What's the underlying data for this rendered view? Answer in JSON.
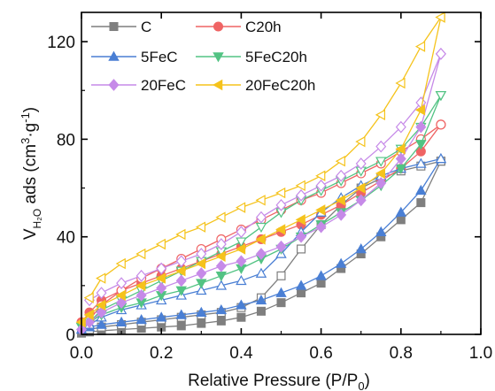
{
  "chart_data": {
    "type": "line",
    "xlabel": "Relative Pressure (P/P0)",
    "xlabel_parts": {
      "main": "Relative Pressure (P/P",
      "sub": "0",
      "end": ")"
    },
    "ylabel": "VH2O ads (cm3·g-1)",
    "ylabel_parts": {
      "v": "V",
      "sub": "H₂O",
      "mid": " ads (cm",
      "sup1": "3",
      "dot": "·g",
      "sup2": "-1",
      "end": ")"
    },
    "xlim": [
      0.0,
      1.0
    ],
    "ylim": [
      0,
      132
    ],
    "xticks": [
      0.0,
      0.2,
      0.4,
      0.6,
      0.8,
      1.0
    ],
    "xtick_labels": [
      "0.0",
      "0.2",
      "0.4",
      "0.6",
      "0.8",
      "1.0"
    ],
    "yticks": [
      0,
      40,
      80,
      120
    ],
    "ytick_labels": [
      "0",
      "40",
      "80",
      "120"
    ],
    "grid": false,
    "legend_placement": "top-left",
    "series": [
      {
        "name": "C",
        "color": "#7f7f7f",
        "marker": "square",
        "adsorption": {
          "x": [
            0.0,
            0.02,
            0.05,
            0.1,
            0.15,
            0.2,
            0.25,
            0.3,
            0.35,
            0.4,
            0.45,
            0.5,
            0.55,
            0.6,
            0.65,
            0.7,
            0.75,
            0.8,
            0.85,
            0.9
          ],
          "y": [
            0.5,
            1,
            1.5,
            2,
            2.5,
            3,
            3.5,
            4.5,
            5.5,
            7,
            9.5,
            13,
            17,
            21,
            27,
            33,
            40,
            47,
            54,
            71
          ]
        },
        "desorption": {
          "x": [
            0.9,
            0.85,
            0.8,
            0.75,
            0.7,
            0.65,
            0.6,
            0.55,
            0.5,
            0.45,
            0.4,
            0.35,
            0.3,
            0.25,
            0.2,
            0.15,
            0.1,
            0.05,
            0.02
          ],
          "y": [
            71,
            69,
            67,
            64,
            60,
            53,
            45,
            35,
            24,
            15,
            11,
            9,
            8,
            7,
            6,
            5,
            4,
            3,
            2
          ]
        }
      },
      {
        "name": "C20h",
        "color": "#ef6464",
        "marker": "circle",
        "adsorption": {
          "x": [
            0.0,
            0.02,
            0.05,
            0.1,
            0.15,
            0.2,
            0.25,
            0.3,
            0.35,
            0.4,
            0.45,
            0.5,
            0.55,
            0.6,
            0.65,
            0.7,
            0.75,
            0.8,
            0.85,
            0.9
          ],
          "y": [
            5,
            9,
            14,
            18,
            21,
            24,
            27,
            30,
            33,
            36,
            39,
            42,
            45,
            49,
            53,
            58,
            63,
            68,
            75,
            86
          ]
        },
        "desorption": {
          "x": [
            0.9,
            0.85,
            0.8,
            0.75,
            0.7,
            0.65,
            0.6,
            0.55,
            0.5,
            0.45,
            0.4,
            0.35,
            0.3,
            0.25,
            0.2,
            0.15,
            0.1,
            0.05,
            0.02
          ],
          "y": [
            86,
            80,
            75,
            70,
            66,
            62,
            58,
            55,
            51,
            47,
            43,
            39,
            35,
            31,
            27,
            23,
            18,
            12,
            6
          ]
        }
      },
      {
        "name": "5FeC",
        "color": "#4a7fd4",
        "marker": "triangle-up",
        "adsorption": {
          "x": [
            0.0,
            0.02,
            0.05,
            0.1,
            0.15,
            0.2,
            0.25,
            0.3,
            0.35,
            0.4,
            0.45,
            0.5,
            0.55,
            0.6,
            0.65,
            0.7,
            0.75,
            0.8,
            0.85,
            0.9
          ],
          "y": [
            2,
            3,
            4,
            5,
            6,
            7,
            8,
            9,
            10,
            12,
            14,
            17,
            20,
            24,
            29,
            35,
            42,
            50,
            59,
            72
          ]
        },
        "desorption": {
          "x": [
            0.9,
            0.85,
            0.8,
            0.75,
            0.7,
            0.65,
            0.6,
            0.55,
            0.5,
            0.45,
            0.4,
            0.35,
            0.3,
            0.25,
            0.2,
            0.15,
            0.1,
            0.05,
            0.02
          ],
          "y": [
            72,
            70,
            68,
            65,
            61,
            56,
            50,
            42,
            33,
            25,
            22,
            20,
            18,
            16,
            14,
            12,
            10,
            7,
            4
          ]
        }
      },
      {
        "name": "5FeC20h",
        "color": "#52c383",
        "marker": "triangle-down",
        "adsorption": {
          "x": [
            0.0,
            0.02,
            0.05,
            0.1,
            0.15,
            0.2,
            0.25,
            0.3,
            0.35,
            0.4,
            0.45,
            0.5,
            0.55,
            0.6,
            0.65,
            0.7,
            0.75,
            0.8,
            0.85,
            0.9
          ],
          "y": [
            3,
            5,
            8,
            11,
            13,
            16,
            18,
            21,
            24,
            27,
            31,
            35,
            40,
            45,
            50,
            55,
            61,
            68,
            78,
            98
          ]
        },
        "desorption": {
          "x": [
            0.9,
            0.85,
            0.8,
            0.75,
            0.7,
            0.65,
            0.6,
            0.55,
            0.5,
            0.45,
            0.4,
            0.35,
            0.3,
            0.25,
            0.2,
            0.15,
            0.1,
            0.05,
            0.02
          ],
          "y": [
            98,
            85,
            76,
            71,
            67,
            63,
            59,
            55,
            50,
            44,
            38,
            34,
            30,
            26,
            22,
            18,
            14,
            10,
            5
          ]
        }
      },
      {
        "name": "20FeC",
        "color": "#c68ae8",
        "marker": "diamond",
        "adsorption": {
          "x": [
            0.0,
            0.02,
            0.05,
            0.1,
            0.15,
            0.2,
            0.25,
            0.3,
            0.35,
            0.4,
            0.45,
            0.5,
            0.55,
            0.6,
            0.65,
            0.7,
            0.75,
            0.8,
            0.85,
            0.9
          ],
          "y": [
            2,
            5,
            9,
            13,
            16,
            19,
            22,
            25,
            28,
            30,
            33,
            36,
            40,
            44,
            49,
            55,
            62,
            72,
            85,
            115
          ]
        },
        "desorption": {
          "x": [
            0.9,
            0.85,
            0.8,
            0.75,
            0.7,
            0.65,
            0.6,
            0.55,
            0.5,
            0.45,
            0.4,
            0.35,
            0.3,
            0.25,
            0.2,
            0.15,
            0.1,
            0.05,
            0.02
          ],
          "y": [
            115,
            95,
            85,
            77,
            70,
            65,
            61,
            57,
            53,
            48,
            42,
            37,
            33,
            30,
            27,
            24,
            21,
            17,
            14
          ]
        }
      },
      {
        "name": "20FeC20h",
        "color": "#f5c31c",
        "marker": "triangle-left",
        "adsorption": {
          "x": [
            0.0,
            0.02,
            0.05,
            0.1,
            0.15,
            0.2,
            0.25,
            0.3,
            0.35,
            0.4,
            0.45,
            0.5,
            0.55,
            0.6,
            0.65,
            0.7,
            0.75,
            0.8,
            0.85,
            0.9
          ],
          "y": [
            5,
            8,
            12,
            16,
            20,
            23,
            26,
            29,
            32,
            35,
            39,
            43,
            47,
            51,
            55,
            60,
            66,
            76,
            92,
            130
          ]
        },
        "desorption": {
          "x": [
            0.9,
            0.85,
            0.8,
            0.75,
            0.7,
            0.65,
            0.6,
            0.55,
            0.5,
            0.45,
            0.4,
            0.35,
            0.3,
            0.25,
            0.2,
            0.15,
            0.1,
            0.05,
            0.02
          ],
          "y": [
            130,
            118,
            103,
            90,
            79,
            71,
            65,
            61,
            58,
            55,
            52,
            48,
            44,
            41,
            37,
            33,
            29,
            23,
            15
          ]
        }
      }
    ]
  }
}
